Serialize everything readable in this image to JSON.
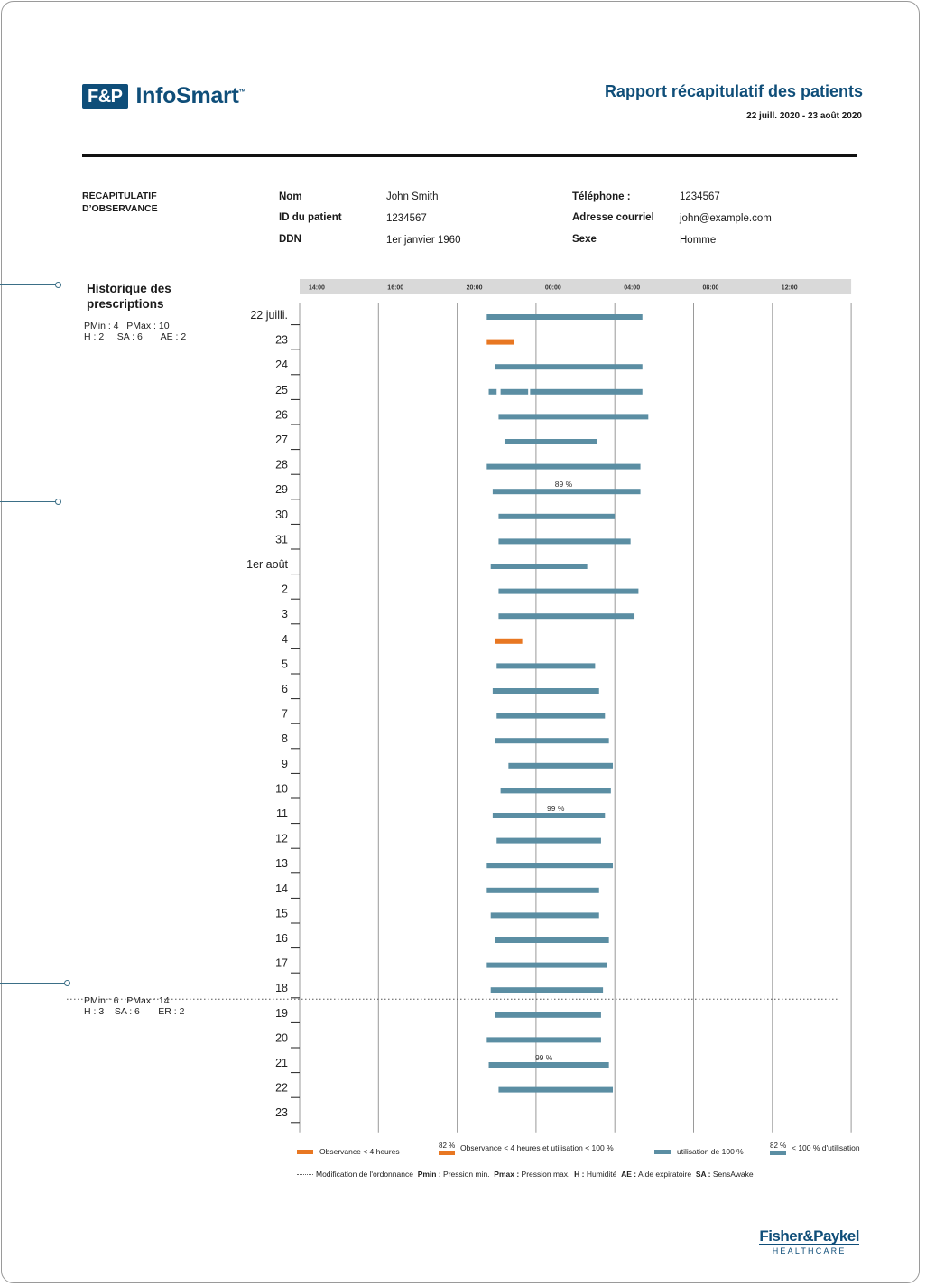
{
  "header": {
    "logo_mark": "F&P",
    "logo_name": "InfoSmart",
    "logo_tm": "™",
    "report_title": "Rapport récapitulatif des patients",
    "date_range": "22 juill. 2020 - 23 août 2020"
  },
  "summary": {
    "section_title": "RÉCAPITULATIF D’OBSERVANCE",
    "fields": {
      "name_label": "Nom",
      "name_value": "John Smith",
      "id_label": "ID du patient",
      "id_value": "1234567",
      "dob_label": "DDN",
      "dob_value": "1er janvier 1960",
      "phone_label": "Téléphone :",
      "phone_value": "1234567",
      "email_label": "Adresse courriel",
      "email_value": "john@example.com",
      "sex_label": "Sexe",
      "sex_value": "Homme"
    }
  },
  "prescriptions": {
    "heading": "Historique des prescriptions",
    "first": {
      "line1": "PMin : 4   PMax : 10",
      "line2": "H : 2     SA : 6       AE : 2"
    },
    "second": {
      "line1": "PMin : 6   PMax : 14",
      "line2": "H : 3    SA : 6       ER : 2"
    }
  },
  "colors": {
    "brand": "#0f4e79",
    "full_use": "#5b8ea3",
    "low_use": "#e87722",
    "grid": "#9a9a9a",
    "header_band": "#d9d9d9"
  },
  "chart_data": {
    "type": "gantt",
    "x_ticks": [
      "14:00",
      "16:00",
      "20:00",
      "00:00",
      "04:00",
      "08:00",
      "12:00"
    ],
    "days": [
      "22 juilli.",
      "23",
      "24",
      "25",
      "26",
      "27",
      "28",
      "29",
      "30",
      "31",
      "1er août",
      "2",
      "3",
      "4",
      "5",
      "6",
      "7",
      "8",
      "9",
      "10",
      "11",
      "12",
      "13",
      "14",
      "15",
      "16",
      "17",
      "18",
      "19",
      "20",
      "21",
      "22",
      "23"
    ],
    "sessions": [
      [
        [
          21.5,
          29.4
        ]
      ],
      [
        [
          21.5,
          22.9
        ]
      ],
      [
        [
          21.9,
          29.4
        ]
      ],
      [
        [
          21.6,
          22.0
        ],
        [
          22.2,
          23.6
        ],
        [
          23.7,
          29.4
        ]
      ],
      [
        [
          22.1,
          29.7
        ]
      ],
      [
        [
          22.4,
          27.1
        ]
      ],
      [
        [
          21.5,
          29.3
        ]
      ],
      [
        [
          21.8,
          29.3
        ]
      ],
      [
        [
          22.1,
          28.0
        ]
      ],
      [
        [
          22.1,
          28.8
        ]
      ],
      [
        [
          21.7,
          26.6
        ]
      ],
      [
        [
          22.1,
          29.2
        ]
      ],
      [
        [
          22.1,
          29.0
        ]
      ],
      [
        [
          21.9,
          23.3
        ]
      ],
      [
        [
          22.0,
          27.0
        ]
      ],
      [
        [
          21.8,
          27.2
        ]
      ],
      [
        [
          22.0,
          27.5
        ]
      ],
      [
        [
          21.9,
          27.7
        ]
      ],
      [
        [
          22.6,
          27.9
        ]
      ],
      [
        [
          22.2,
          27.8
        ]
      ],
      [
        [
          21.8,
          27.5
        ]
      ],
      [
        [
          22.0,
          27.3
        ]
      ],
      [
        [
          21.5,
          27.9
        ]
      ],
      [
        [
          21.5,
          27.2
        ]
      ],
      [
        [
          21.7,
          27.2
        ]
      ],
      [
        [
          21.9,
          27.7
        ]
      ],
      [
        [
          21.5,
          27.6
        ]
      ],
      [
        [
          21.7,
          27.4
        ]
      ],
      [
        [
          21.9,
          27.3
        ]
      ],
      [
        [
          21.5,
          27.3
        ]
      ],
      [
        [
          21.6,
          27.7
        ]
      ],
      [
        [
          22.1,
          27.9
        ]
      ]
    ],
    "low_use_days": [
      1,
      13
    ],
    "percent_labels": [
      {
        "day": 6,
        "text": "89 %"
      },
      {
        "day": 19,
        "text": "99 %"
      },
      {
        "day": 29,
        "text": "99 %"
      }
    ],
    "prescription_change_day": 27
  },
  "legend": {
    "item1": "Observance < 4 heures",
    "item2_pct": "82 %",
    "item2": "Observance < 4 heures et utilisation < 100 %",
    "item3": "utilisation de 100 %",
    "item4_pct": "82 %",
    "item4": "< 100 % d'utilisation",
    "change_line": "Modification de l'ordonnance",
    "pmin_key": "Pmin :",
    "pmin_desc": "Pression min.",
    "pmax_key": "Pmax :",
    "pmax_desc": "Pression max.",
    "h_key": "H :",
    "h_desc": "Humidité",
    "ae_key": "AE :",
    "ae_desc": "Aide expiratoire",
    "sa_key": "SA :",
    "sa_desc": "SensAwake"
  },
  "footer": {
    "brand_name": "Fisher&Paykel",
    "brand_sub": "HEALTHCARE"
  }
}
